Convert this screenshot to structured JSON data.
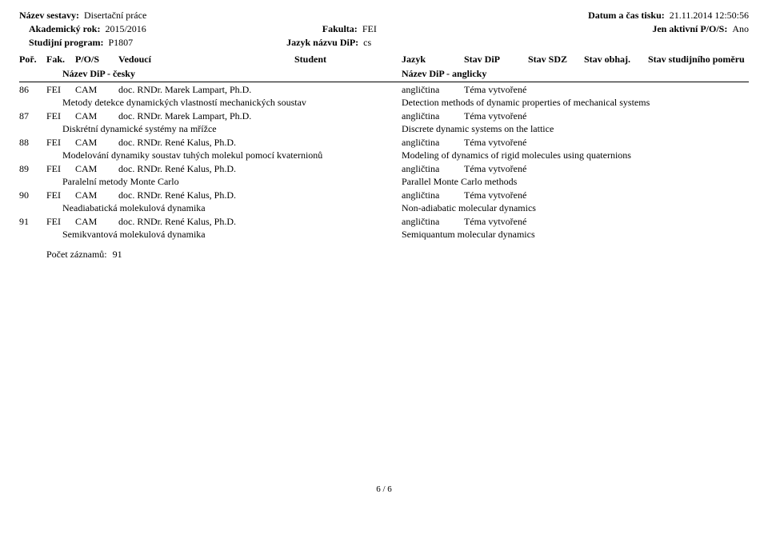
{
  "header": {
    "title_label": "Název sestavy:",
    "title_value": "Disertační práce",
    "date_label": "Datum a čas tisku:",
    "date_value": "21.11.2014 12:50:56",
    "year_label": "Akademický rok:",
    "year_value": "2015/2016",
    "fac_label": "Fakulta:",
    "fac_value": "FEI",
    "active_label": "Jen aktivní P/O/S:",
    "active_value": "Ano",
    "prog_label": "Studijní program:",
    "prog_value": "P1807",
    "lang_label": "Jazyk názvu DiP:",
    "lang_value": "cs"
  },
  "cols": {
    "por": "Poř.",
    "fak": "Fak.",
    "pos": "P/O/S",
    "ved": "Vedoucí",
    "stu": "Student",
    "jaz": "Jazyk",
    "sdip": "Stav DiP",
    "ssdz": "Stav SDZ",
    "sobh": "Stav obhaj.",
    "spom": "Stav studijního poměru",
    "name_cz": "Název DiP - česky",
    "name_en": "Název DiP - anglicky"
  },
  "rows": [
    {
      "por": "86",
      "fak": "FEI",
      "pos": "CAM",
      "ved": "doc. RNDr. Marek Lampart, Ph.D.",
      "jaz": "angličtina",
      "sdip": "Téma vytvořené",
      "cz": "Metody detekce dynamických vlastností mechanických soustav",
      "en": "Detection methods of dynamic properties of mechanical systems"
    },
    {
      "por": "87",
      "fak": "FEI",
      "pos": "CAM",
      "ved": "doc. RNDr. Marek Lampart, Ph.D.",
      "jaz": "angličtina",
      "sdip": "Téma vytvořené",
      "cz": "Diskrétní dynamické systémy na mřížce",
      "en": "Discrete dynamic systems on the lattice"
    },
    {
      "por": "88",
      "fak": "FEI",
      "pos": "CAM",
      "ved": "doc. RNDr. René Kalus, Ph.D.",
      "jaz": "angličtina",
      "sdip": "Téma vytvořené",
      "cz": "Modelování dynamiky soustav tuhých molekul pomocí kvaternionů",
      "en": "Modeling of dynamics of rigid molecules using quaternions"
    },
    {
      "por": "89",
      "fak": "FEI",
      "pos": "CAM",
      "ved": "doc. RNDr. René Kalus, Ph.D.",
      "jaz": "angličtina",
      "sdip": "Téma vytvořené",
      "cz": "Paralelní metody Monte Carlo",
      "en": "Parallel Monte Carlo methods"
    },
    {
      "por": "90",
      "fak": "FEI",
      "pos": "CAM",
      "ved": "doc. RNDr. René Kalus, Ph.D.",
      "jaz": "angličtina",
      "sdip": "Téma vytvořené",
      "cz": "Neadiabatická molekulová dynamika",
      "en": "Non-adiabatic molecular dynamics"
    },
    {
      "por": "91",
      "fak": "FEI",
      "pos": "CAM",
      "ved": "doc. RNDr. René Kalus, Ph.D.",
      "jaz": "angličtina",
      "sdip": "Téma vytvořené",
      "cz": "Semikvantová molekulová dynamika",
      "en": "Semiquantum molecular dynamics"
    }
  ],
  "footer": {
    "count_label": "Počet záznamů:",
    "count_value": "91",
    "page": "6 / 6"
  }
}
